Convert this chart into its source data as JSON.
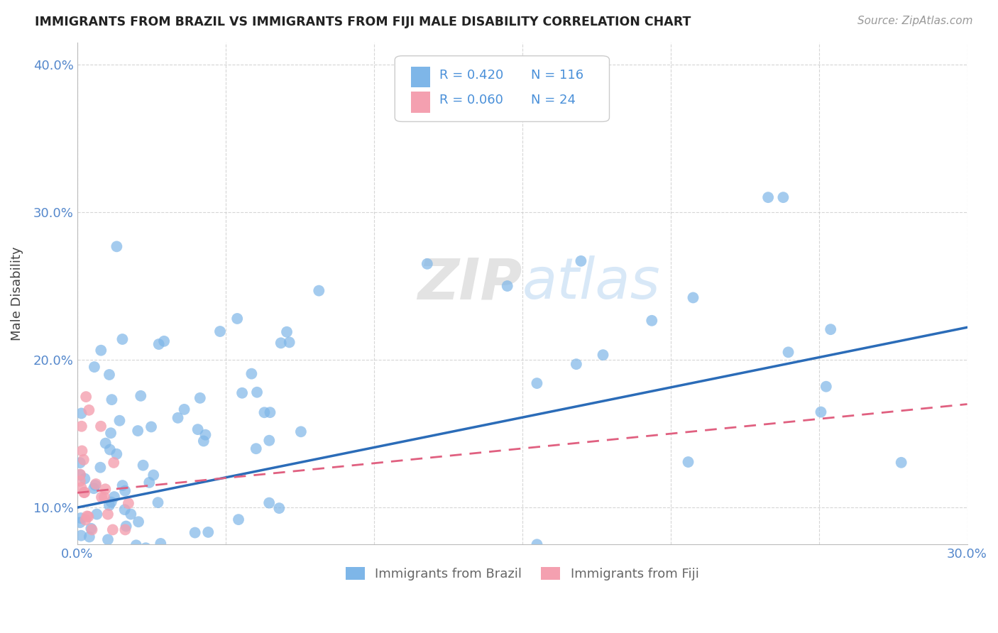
{
  "title": "IMMIGRANTS FROM BRAZIL VS IMMIGRANTS FROM FIJI MALE DISABILITY CORRELATION CHART",
  "source": "Source: ZipAtlas.com",
  "ylabel": "Male Disability",
  "xlim": [
    0.0,
    0.3
  ],
  "ylim": [
    0.075,
    0.415
  ],
  "x_ticks": [
    0.0,
    0.05,
    0.1,
    0.15,
    0.2,
    0.25,
    0.3
  ],
  "y_ticks": [
    0.1,
    0.2,
    0.3,
    0.4
  ],
  "y_tick_labels": [
    "10.0%",
    "20.0%",
    "30.0%",
    "40.0%"
  ],
  "brazil_color": "#7EB6E8",
  "fiji_color": "#F4A0B0",
  "brazil_line_color": "#2B6CB8",
  "fiji_line_color": "#E06080",
  "brazil_R": 0.42,
  "brazil_N": 116,
  "fiji_R": 0.06,
  "fiji_N": 24,
  "watermark": "ZIPatlas",
  "background_color": "#FFFFFF",
  "grid_color": "#CCCCCC",
  "rn_color": "#4A90D9",
  "brazil_trend_x0": 0.0,
  "brazil_trend_y0": 0.1,
  "brazil_trend_x1": 0.3,
  "brazil_trend_y1": 0.222,
  "fiji_trend_x0": 0.0,
  "fiji_trend_y0": 0.11,
  "fiji_trend_x1": 0.3,
  "fiji_trend_y1": 0.17
}
